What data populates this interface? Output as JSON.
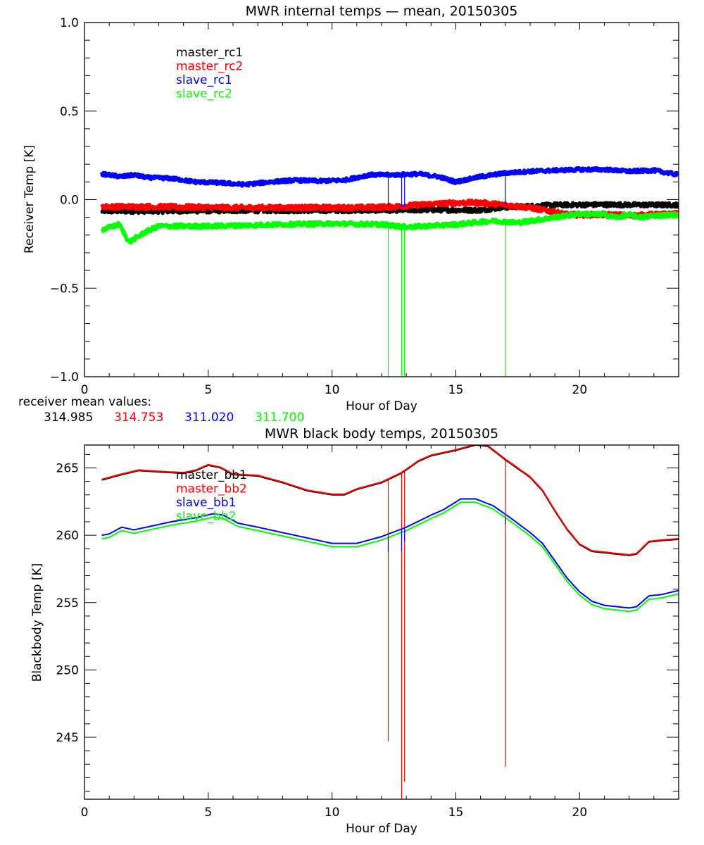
{
  "chart_data": [
    {
      "type": "line",
      "title": "MWR internal temps — mean, 20150305",
      "xlabel": "Hour of Day",
      "ylabel": "Receiver Temp [K]",
      "xlim": [
        0,
        24
      ],
      "ylim": [
        -1.0,
        1.0
      ],
      "xticks": [
        0,
        5,
        10,
        15,
        20
      ],
      "xtick_labels": [
        "0",
        "5",
        "10",
        "15",
        "20"
      ],
      "xminor_step": 1,
      "yticks": [
        -1.0,
        -0.5,
        0.0,
        0.5,
        1.0
      ],
      "ytick_labels": [
        "−1.0",
        "−0.5",
        "0.0",
        "0.5",
        "1.0"
      ],
      "yminor_step": 0.1,
      "grid": false,
      "legend_position": "top-left",
      "series": [
        {
          "name": "master_rc1",
          "color": "#000000",
          "noise": 0.012,
          "x": [
            0.7,
            3,
            6,
            9,
            12,
            14,
            16,
            16.8,
            17.5,
            19,
            21,
            23,
            24
          ],
          "y": [
            -0.065,
            -0.065,
            -0.062,
            -0.062,
            -0.06,
            -0.058,
            -0.06,
            -0.045,
            -0.04,
            -0.03,
            -0.028,
            -0.03,
            -0.03
          ]
        },
        {
          "name": "master_rc2",
          "color": "#ff0000",
          "noise": 0.014,
          "x": [
            0.7,
            3,
            6,
            9,
            11,
            12.5,
            14,
            15,
            16,
            17,
            18,
            19,
            19.5,
            21,
            22,
            23,
            24
          ],
          "y": [
            -0.04,
            -0.04,
            -0.045,
            -0.045,
            -0.045,
            -0.04,
            -0.025,
            -0.018,
            -0.018,
            -0.03,
            -0.045,
            -0.07,
            -0.085,
            -0.085,
            -0.09,
            -0.085,
            -0.08
          ]
        },
        {
          "name": "slave_rc1",
          "color": "#0000ff",
          "noise": 0.01,
          "x": [
            0.7,
            1.5,
            2.0,
            2.5,
            3.5,
            4.5,
            5.5,
            6.5,
            7.5,
            8.5,
            9.5,
            10.5,
            11.5,
            12.5,
            13.5,
            14.3,
            15.0,
            16.0,
            17.0,
            18.0,
            19.0,
            20.0,
            21.0,
            22.0,
            23.0,
            24.0
          ],
          "y": [
            0.145,
            0.13,
            0.14,
            0.125,
            0.12,
            0.1,
            0.095,
            0.085,
            0.1,
            0.11,
            0.105,
            0.11,
            0.14,
            0.14,
            0.145,
            0.13,
            0.1,
            0.13,
            0.15,
            0.16,
            0.165,
            0.17,
            0.17,
            0.16,
            0.165,
            0.14
          ]
        },
        {
          "name": "slave_rc2",
          "color": "#00ff00",
          "noise": 0.012,
          "x": [
            0.7,
            1.4,
            1.8,
            2.5,
            3.0,
            5.0,
            8.0,
            10.0,
            12.0,
            13.0,
            15.0,
            16.5,
            17.5,
            19.0,
            20.0,
            21.0,
            21.5,
            22.0,
            22.5,
            23.0,
            24.0
          ],
          "y": [
            -0.17,
            -0.14,
            -0.24,
            -0.18,
            -0.15,
            -0.15,
            -0.14,
            -0.135,
            -0.14,
            -0.155,
            -0.14,
            -0.12,
            -0.13,
            -0.1,
            -0.08,
            -0.085,
            -0.1,
            -0.085,
            -0.1,
            -0.09,
            -0.085
          ]
        }
      ],
      "spikes": [
        {
          "x": 12.27,
          "series": "slave_rc1",
          "from": 0.14,
          "to": -0.04
        },
        {
          "x": 12.81,
          "series": "slave_rc1",
          "from": 0.14,
          "to": -0.04
        },
        {
          "x": 12.93,
          "series": "slave_rc1",
          "from": 0.14,
          "to": -0.04
        },
        {
          "x": 17.0,
          "series": "slave_rc1",
          "from": 0.15,
          "to": -0.03
        },
        {
          "x": 12.27,
          "series": "slave_rc2",
          "from": -0.14,
          "to": -1.0
        },
        {
          "x": 12.81,
          "series": "slave_rc2",
          "from": -0.15,
          "to": -1.0
        },
        {
          "x": 12.93,
          "series": "slave_rc2",
          "from": -0.15,
          "to": -1.0
        },
        {
          "x": 17.0,
          "series": "slave_rc2",
          "from": -0.13,
          "to": -1.0
        }
      ],
      "annotation": {
        "label": "receiver mean values:",
        "values": [
          {
            "text": "314.985",
            "color": "#000000"
          },
          {
            "text": "314.753",
            "color": "#ff0000"
          },
          {
            "text": "311.020",
            "color": "#0000ff"
          },
          {
            "text": "311.700",
            "color": "#00ff00"
          }
        ]
      }
    },
    {
      "type": "line",
      "title": "MWR black body temps, 20150305",
      "xlabel": "Hour of Day",
      "ylabel": "Blackbody Temp [K]",
      "xlim": [
        0,
        24
      ],
      "ylim": [
        240.4,
        266.7
      ],
      "xticks": [
        0,
        5,
        10,
        15,
        20
      ],
      "xtick_labels": [
        "0",
        "5",
        "10",
        "15",
        "20"
      ],
      "xminor_step": 1,
      "yticks": [
        245,
        250,
        255,
        260,
        265
      ],
      "ytick_labels": [
        "245",
        "250",
        "255",
        "260",
        "265"
      ],
      "yminor_step": 1,
      "grid": false,
      "legend_position": "top-left",
      "series": [
        {
          "name": "master_bb1",
          "color": "#000000",
          "x": [
            0.7,
            1.5,
            2.2,
            3.0,
            4.0,
            4.5,
            5.0,
            5.5,
            6.0,
            7.0,
            8.0,
            9.0,
            10.0,
            10.5,
            11.0,
            12.0,
            12.8,
            13.5,
            14.0,
            15.0,
            15.8,
            16.3,
            17.0,
            18.0,
            18.5,
            19.0,
            19.5,
            20.0,
            20.5,
            21.0,
            22.0,
            22.3,
            22.8,
            23.3,
            24.0
          ],
          "y": [
            264.1,
            264.5,
            264.8,
            264.7,
            264.6,
            264.8,
            265.2,
            265.0,
            264.5,
            264.4,
            263.9,
            263.3,
            263.0,
            263.0,
            263.4,
            263.9,
            264.6,
            265.5,
            265.9,
            266.3,
            266.7,
            266.6,
            265.6,
            264.3,
            263.3,
            261.8,
            260.4,
            259.3,
            258.8,
            258.7,
            258.5,
            258.6,
            259.5,
            259.6,
            259.7
          ]
        },
        {
          "name": "master_bb2",
          "color": "#ff0000",
          "x": [
            0.7,
            1.5,
            2.2,
            3.0,
            4.0,
            4.5,
            5.0,
            5.5,
            6.0,
            7.0,
            8.0,
            9.0,
            10.0,
            10.5,
            11.0,
            12.0,
            12.8,
            13.5,
            14.0,
            15.0,
            15.8,
            16.3,
            17.0,
            18.0,
            18.5,
            19.0,
            19.5,
            20.0,
            20.5,
            21.0,
            22.0,
            22.3,
            22.8,
            23.3,
            24.0
          ],
          "y": [
            264.15,
            264.55,
            264.85,
            264.75,
            264.65,
            264.85,
            265.25,
            265.05,
            264.55,
            264.45,
            263.95,
            263.35,
            263.05,
            263.05,
            263.45,
            263.95,
            264.65,
            265.55,
            265.95,
            266.35,
            266.75,
            266.65,
            265.65,
            264.35,
            263.35,
            261.85,
            260.45,
            259.35,
            258.85,
            258.75,
            258.55,
            258.65,
            259.55,
            259.65,
            259.75
          ]
        },
        {
          "name": "slave_bb1",
          "color": "#0000ff",
          "x": [
            0.7,
            1.0,
            1.5,
            2.0,
            2.5,
            3.5,
            4.5,
            5.2,
            5.6,
            6.2,
            7.0,
            8.0,
            9.0,
            10.0,
            11.0,
            12.0,
            13.0,
            14.0,
            14.5,
            15.2,
            15.8,
            16.5,
            17.2,
            18.0,
            18.5,
            19.0,
            19.5,
            20.0,
            20.5,
            21.0,
            22.0,
            22.3,
            22.8,
            23.3,
            24.0
          ],
          "y": [
            260.0,
            260.1,
            260.6,
            260.4,
            260.6,
            261.0,
            261.3,
            261.6,
            261.5,
            260.9,
            260.6,
            260.2,
            259.8,
            259.4,
            259.4,
            259.9,
            260.6,
            261.5,
            261.9,
            262.7,
            262.7,
            262.2,
            261.3,
            260.2,
            259.4,
            258.1,
            256.8,
            255.8,
            255.1,
            254.8,
            254.6,
            254.7,
            255.5,
            255.6,
            255.9
          ]
        },
        {
          "name": "slave_bb2",
          "color": "#00ff00",
          "x": [
            0.7,
            1.0,
            1.5,
            2.0,
            2.5,
            3.5,
            4.5,
            5.2,
            5.6,
            6.2,
            7.0,
            8.0,
            9.0,
            10.0,
            11.0,
            12.0,
            13.0,
            14.0,
            14.5,
            15.2,
            15.8,
            16.5,
            17.2,
            18.0,
            18.5,
            19.0,
            19.5,
            20.0,
            20.5,
            21.0,
            22.0,
            22.3,
            22.8,
            23.3,
            24.0
          ],
          "y": [
            259.75,
            259.85,
            260.35,
            260.15,
            260.35,
            260.75,
            261.05,
            261.35,
            261.25,
            260.65,
            260.35,
            259.95,
            259.55,
            259.15,
            259.15,
            259.65,
            260.35,
            261.25,
            261.65,
            262.45,
            262.45,
            261.95,
            261.05,
            259.95,
            259.15,
            257.85,
            256.55,
            255.55,
            254.85,
            254.55,
            254.35,
            254.45,
            255.25,
            255.35,
            255.65
          ]
        }
      ],
      "spikes": [
        {
          "x": 12.27,
          "series": "master_bb2",
          "from": 264.1,
          "to": 244.7
        },
        {
          "x": 12.81,
          "series": "master_bb2",
          "from": 264.6,
          "to": 239.0
        },
        {
          "x": 12.93,
          "series": "master_bb2",
          "from": 264.7,
          "to": 241.7
        },
        {
          "x": 17.0,
          "series": "master_bb2",
          "from": 265.6,
          "to": 242.8
        },
        {
          "x": 12.27,
          "series": "slave_bb1",
          "from": 259.9,
          "to": 258.8
        },
        {
          "x": 12.81,
          "series": "slave_bb1",
          "from": 260.5,
          "to": 258.8
        },
        {
          "x": 12.93,
          "series": "slave_bb1",
          "from": 260.6,
          "to": 259.5
        },
        {
          "x": 17.0,
          "series": "slave_bb1",
          "from": 261.3,
          "to": 260.8
        }
      ]
    }
  ]
}
